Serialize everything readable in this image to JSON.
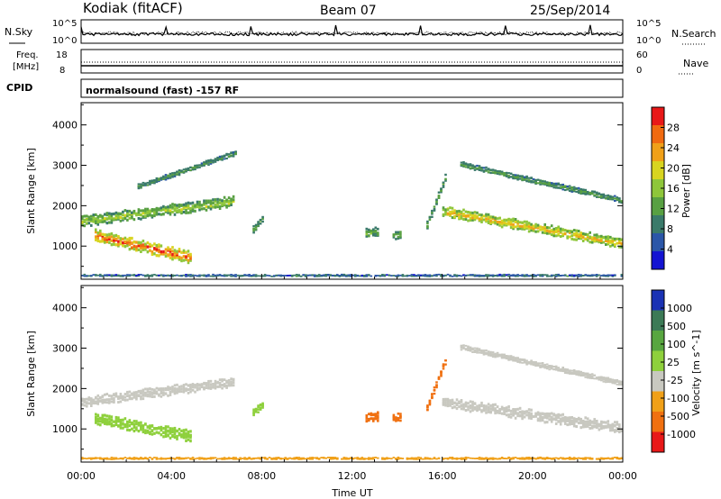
{
  "header": {
    "station": "Kodiak (fitACF)",
    "beam": "Beam 07",
    "date": "25/Sep/2014"
  },
  "panels": {
    "nsky": {
      "label": "N.Sky",
      "right_label": "N.Search",
      "left_ticks": [
        "10^5",
        "10^0"
      ],
      "right_ticks": [
        "10^5",
        "10^0"
      ]
    },
    "freq": {
      "label_line1": "Freq.",
      "label_line2": "[MHz]",
      "right_label": "Nave",
      "left_ticks": [
        "18",
        "8"
      ],
      "right_ticks": [
        "60",
        "0"
      ]
    },
    "cpid": {
      "label": "CPID",
      "text": "normalsound (fast) -157 RF"
    }
  },
  "chart_data": [
    {
      "type": "heatmap",
      "title": "",
      "quantity": "Power [dB]",
      "xlabel": "Time UT",
      "ylabel": "Slant Range [km]",
      "x_ticks": [
        "00:00",
        "04:00",
        "08:00",
        "12:00",
        "16:00",
        "20:00",
        "00:00"
      ],
      "x_hours": [
        0,
        4,
        8,
        12,
        16,
        20,
        24
      ],
      "xlim_hours": [
        0,
        24
      ],
      "ylim": [
        180,
        4550
      ],
      "y_ticks": [
        1000,
        2000,
        3000,
        4000
      ],
      "colorbar": {
        "label": "Power [dB]",
        "ticks": [
          "4",
          "8",
          "12",
          "16",
          "20",
          "24",
          "28"
        ],
        "colors": [
          "#1414d2",
          "#2b56a8",
          "#3a7a6a",
          "#58a042",
          "#8ec63a",
          "#d8d420",
          "#f0a018",
          "#f06a10",
          "#e81818"
        ]
      },
      "features": [
        {
          "t0": 0.0,
          "t1": 6.8,
          "r_start": 1600,
          "r_end": 2100,
          "thick": 230,
          "value": 14
        },
        {
          "t0": 0.6,
          "t1": 4.9,
          "r_start": 1250,
          "r_end": 700,
          "thick": 260,
          "value": 26
        },
        {
          "t0": 2.5,
          "t1": 6.9,
          "r_start": 2450,
          "r_end": 3300,
          "thick": 110,
          "value": 8
        },
        {
          "t0": 16.0,
          "t1": 24.0,
          "r_start": 1850,
          "r_end": 1050,
          "thick": 220,
          "value": 20
        },
        {
          "t0": 16.8,
          "t1": 24.0,
          "r_start": 3000,
          "r_end": 2100,
          "thick": 120,
          "value": 9
        },
        {
          "t0": 15.3,
          "t1": 16.2,
          "r_start": 1500,
          "r_end": 2800,
          "thick": 160,
          "value": 10
        },
        {
          "t0": 12.6,
          "t1": 13.2,
          "r_start": 1300,
          "r_end": 1350,
          "thick": 200,
          "value": 11
        },
        {
          "t0": 13.8,
          "t1": 14.2,
          "r_start": 1250,
          "r_end": 1300,
          "thick": 180,
          "value": 10
        },
        {
          "t0": 7.6,
          "t1": 8.1,
          "r_start": 1400,
          "r_end": 1700,
          "thick": 160,
          "value": 10
        },
        {
          "t0": 0.0,
          "t1": 24.0,
          "r_start": 220,
          "r_end": 220,
          "thick": 90,
          "value": 6
        }
      ]
    },
    {
      "type": "heatmap",
      "title": "",
      "quantity": "Velocity [m s^-1]",
      "xlabel": "Time UT",
      "ylabel": "Slant Range [km]",
      "x_ticks": [
        "00:00",
        "04:00",
        "08:00",
        "12:00",
        "16:00",
        "20:00",
        "00:00"
      ],
      "x_hours": [
        0,
        4,
        8,
        12,
        16,
        20,
        24
      ],
      "xlim_hours": [
        0,
        24
      ],
      "ylim": [
        180,
        4550
      ],
      "y_ticks": [
        1000,
        2000,
        3000,
        4000
      ],
      "colorbar": {
        "label": "Velocity [m s^-1]",
        "ticks": [
          "1000",
          "500",
          "100",
          "25",
          "-25",
          "-100",
          "-500",
          "-1000"
        ],
        "colors": [
          "#1a32b4",
          "#3c7a56",
          "#58a640",
          "#8ed03c",
          "#c8c8c0",
          "#f0a018",
          "#f07010",
          "#e81818"
        ]
      },
      "features": [
        {
          "t0": 0.0,
          "t1": 6.8,
          "r_start": 1650,
          "r_end": 2150,
          "thick": 210,
          "value": 0
        },
        {
          "t0": 0.6,
          "t1": 4.9,
          "r_start": 1250,
          "r_end": 800,
          "thick": 240,
          "value": 80
        },
        {
          "t0": 16.0,
          "t1": 24.0,
          "r_start": 1650,
          "r_end": 1000,
          "thick": 230,
          "value": 0
        },
        {
          "t0": 16.8,
          "t1": 24.0,
          "r_start": 3000,
          "r_end": 2100,
          "thick": 110,
          "value": 0
        },
        {
          "t0": 15.3,
          "t1": 16.2,
          "r_start": 1500,
          "r_end": 2800,
          "thick": 140,
          "value": -200
        },
        {
          "t0": 12.6,
          "t1": 13.2,
          "r_start": 1250,
          "r_end": 1300,
          "thick": 200,
          "value": -300
        },
        {
          "t0": 13.8,
          "t1": 14.2,
          "r_start": 1250,
          "r_end": 1300,
          "thick": 180,
          "value": -300
        },
        {
          "t0": 7.6,
          "t1": 8.1,
          "r_start": 1400,
          "r_end": 1600,
          "thick": 160,
          "value": 60
        },
        {
          "t0": 0.0,
          "t1": 24.0,
          "r_start": 220,
          "r_end": 220,
          "thick": 90,
          "value": -50
        }
      ]
    }
  ]
}
